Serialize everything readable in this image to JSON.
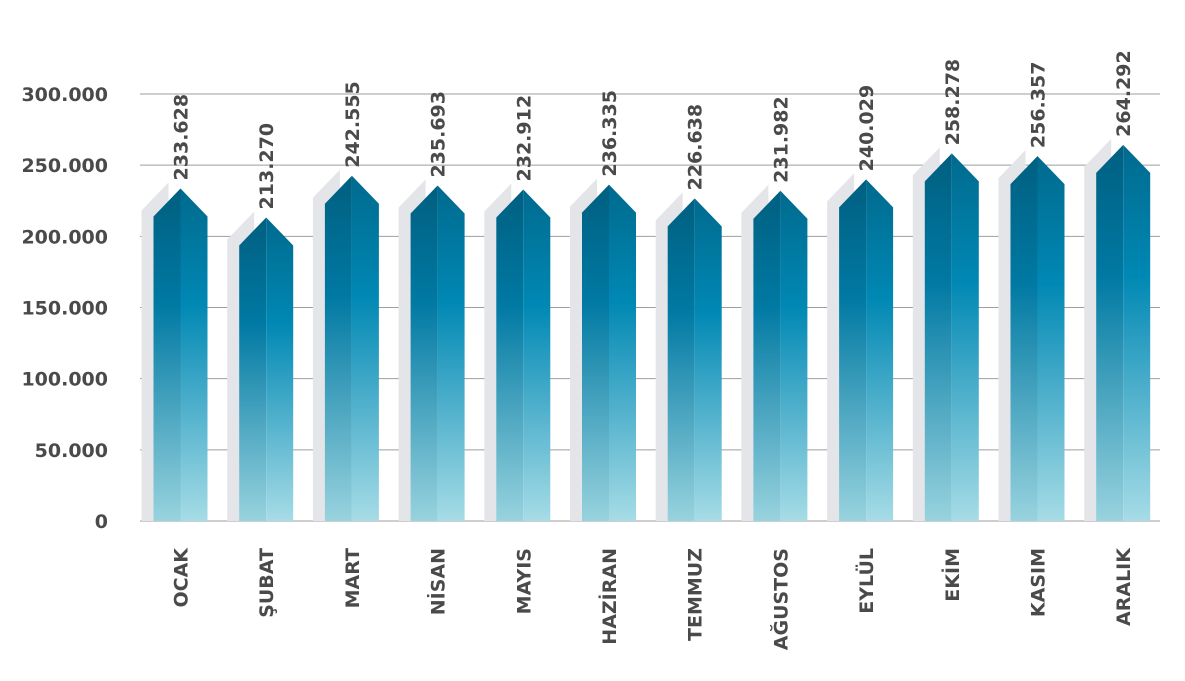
{
  "chart_data": {
    "type": "bar",
    "title": "",
    "xlabel": "",
    "ylabel": "",
    "categories": [
      "OCAK",
      "ŞUBAT",
      "MART",
      "NİSAN",
      "MAYIS",
      "HAZİRAN",
      "TEMMUZ",
      "AĞUSTOS",
      "EYLÜL",
      "EKİM",
      "KASIM",
      "ARALIK"
    ],
    "values": [
      233628,
      213270,
      242555,
      235693,
      232912,
      236335,
      226638,
      231982,
      240029,
      258278,
      256357,
      264292
    ],
    "value_labels": [
      "233.628",
      "213.270",
      "242.555",
      "235.693",
      "232.912",
      "236.335",
      "226.638",
      "231.982",
      "240.029",
      "258.278",
      "256.357",
      "264.292"
    ],
    "yticks": [
      0,
      50000,
      100000,
      150000,
      200000,
      250000,
      300000
    ],
    "ytick_labels": [
      "0",
      "50.000",
      "100.000",
      "150.000",
      "200.000",
      "250.000",
      "300.000"
    ],
    "ylim": [
      0,
      300000
    ],
    "grid": true,
    "legend": "none",
    "colors": {
      "bar_top": "#006a8e",
      "bar_mid": "#0085b0",
      "bar_bottom": "#a6dce6",
      "shadow": "#e3e5e8",
      "grid": "#9e9e9e",
      "text": "#4a4a4a"
    }
  }
}
